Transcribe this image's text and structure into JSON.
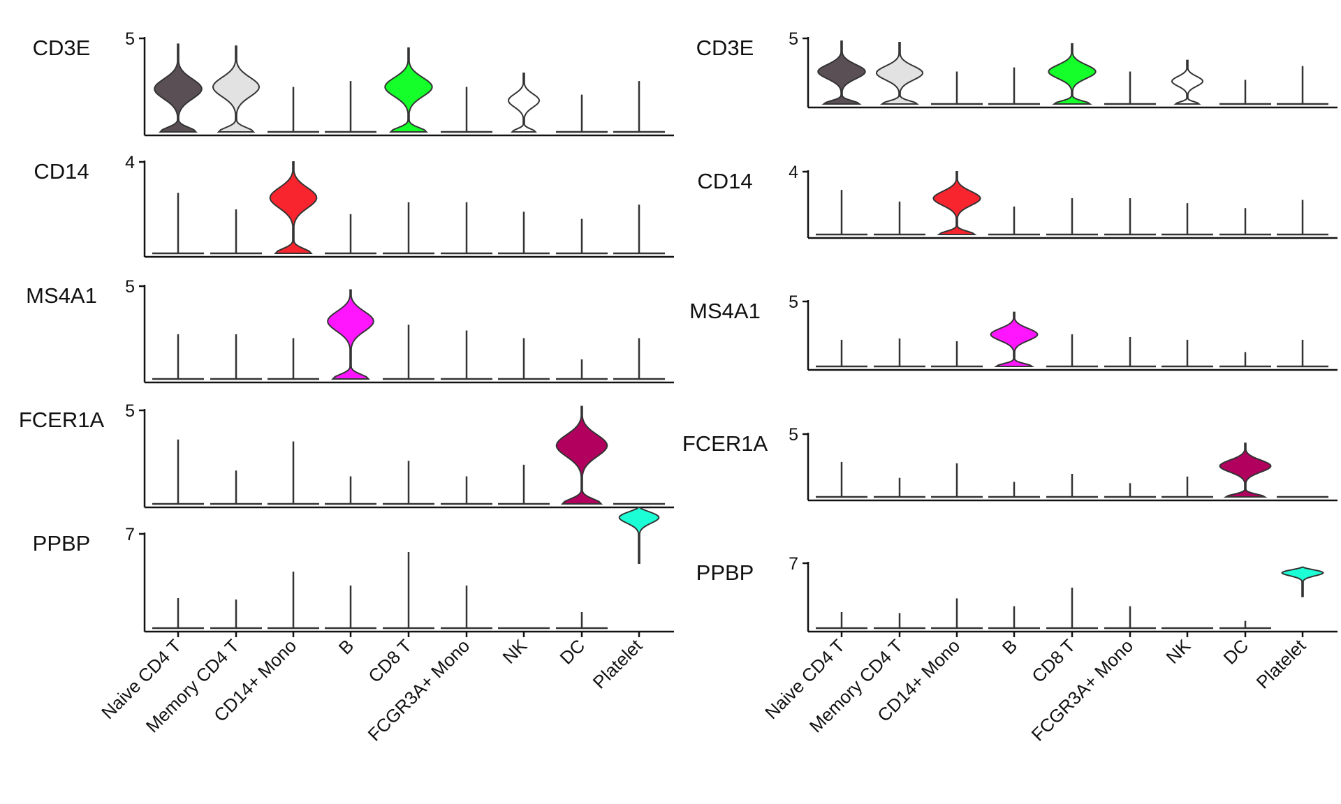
{
  "chart_data": [
    {
      "type": "violin",
      "categories": [
        "Naive CD4 T",
        "Memory CD4 T",
        "CD14+ Mono",
        "B",
        "CD8 T",
        "FCGR3A+ Mono",
        "NK",
        "DC",
        "Platelet"
      ],
      "category_colors": [
        "#5a4f55",
        "#e2e2e2",
        "#f8252f",
        "#ff16ff",
        "#15ff2a",
        "#ffffff",
        "#ffffff",
        "#b1005e",
        "#1cffd6"
      ],
      "panels": [
        {
          "gene": "CD3E",
          "ylim": [
            0,
            5
          ],
          "tick_label": "5",
          "violins": [
            {
              "category": "Naive CD4 T",
              "max": 4.7,
              "peak": 2.4,
              "width": 0.92
            },
            {
              "category": "Memory CD4 T",
              "max": 4.6,
              "peak": 2.5,
              "width": 0.9
            },
            {
              "category": "CD14+ Mono",
              "max": 2.5,
              "peak": null,
              "width": 0
            },
            {
              "category": "B",
              "max": 2.8,
              "peak": null,
              "width": 0
            },
            {
              "category": "CD8 T",
              "max": 4.5,
              "peak": 2.5,
              "width": 0.92
            },
            {
              "category": "FCGR3A+ Mono",
              "max": 2.5,
              "peak": null,
              "width": 0
            },
            {
              "category": "NK",
              "max": 3.2,
              "peak": 1.8,
              "width": 0.6
            },
            {
              "category": "DC",
              "max": 2.1,
              "peak": null,
              "width": 0
            },
            {
              "category": "Platelet",
              "max": 2.8,
              "peak": null,
              "width": 0
            }
          ]
        },
        {
          "gene": "CD14",
          "ylim": [
            0,
            4
          ],
          "tick_label": "4",
          "violins": [
            {
              "category": "Naive CD4 T",
              "max": 2.7,
              "peak": null,
              "width": 0
            },
            {
              "category": "Memory CD4 T",
              "max": 2.0,
              "peak": null,
              "width": 0
            },
            {
              "category": "CD14+ Mono",
              "max": 4.0,
              "peak": 2.5,
              "width": 0.92
            },
            {
              "category": "B",
              "max": 1.8,
              "peak": null,
              "width": 0
            },
            {
              "category": "CD8 T",
              "max": 2.3,
              "peak": null,
              "width": 0
            },
            {
              "category": "FCGR3A+ Mono",
              "max": 2.3,
              "peak": null,
              "width": 0
            },
            {
              "category": "NK",
              "max": 1.9,
              "peak": null,
              "width": 0
            },
            {
              "category": "DC",
              "max": 1.6,
              "peak": null,
              "width": 0
            },
            {
              "category": "Platelet",
              "max": 2.2,
              "peak": null,
              "width": 0
            }
          ]
        },
        {
          "gene": "MS4A1",
          "ylim": [
            0,
            5
          ],
          "tick_label": "5",
          "violins": [
            {
              "category": "Naive CD4 T",
              "max": 2.5,
              "peak": null,
              "width": 0
            },
            {
              "category": "Memory CD4 T",
              "max": 2.5,
              "peak": null,
              "width": 0
            },
            {
              "category": "CD14+ Mono",
              "max": 2.3,
              "peak": null,
              "width": 0
            },
            {
              "category": "B",
              "max": 4.8,
              "peak": 3.2,
              "width": 0.92
            },
            {
              "category": "CD8 T",
              "max": 3.0,
              "peak": null,
              "width": 0
            },
            {
              "category": "FCGR3A+ Mono",
              "max": 2.7,
              "peak": null,
              "width": 0
            },
            {
              "category": "NK",
              "max": 2.3,
              "peak": null,
              "width": 0
            },
            {
              "category": "DC",
              "max": 1.2,
              "peak": null,
              "width": 0
            },
            {
              "category": "Platelet",
              "max": 2.3,
              "peak": null,
              "width": 0
            }
          ]
        },
        {
          "gene": "FCER1A",
          "ylim": [
            0,
            5
          ],
          "tick_label": "5",
          "violins": [
            {
              "category": "Naive CD4 T",
              "max": 3.5,
              "peak": null,
              "width": 0
            },
            {
              "category": "Memory CD4 T",
              "max": 1.9,
              "peak": null,
              "width": 0
            },
            {
              "category": "CD14+ Mono",
              "max": 3.4,
              "peak": null,
              "width": 0
            },
            {
              "category": "B",
              "max": 1.6,
              "peak": null,
              "width": 0
            },
            {
              "category": "CD8 T",
              "max": 2.4,
              "peak": null,
              "width": 0
            },
            {
              "category": "FCGR3A+ Mono",
              "max": 1.6,
              "peak": null,
              "width": 0
            },
            {
              "category": "NK",
              "max": 2.2,
              "peak": null,
              "width": 0
            },
            {
              "category": "DC",
              "max": 5.2,
              "peak": 3.2,
              "width": 1.0
            },
            {
              "category": "Platelet",
              "max": 0,
              "peak": null,
              "width": 0
            }
          ]
        },
        {
          "gene": "PPBP",
          "ylim": [
            0,
            7
          ],
          "tick_label": "7",
          "violins": [
            {
              "category": "Naive CD4 T",
              "max": 2.4,
              "peak": null,
              "width": 0
            },
            {
              "category": "Memory CD4 T",
              "max": 2.3,
              "peak": null,
              "width": 0
            },
            {
              "category": "CD14+ Mono",
              "max": 4.3,
              "peak": null,
              "width": 0
            },
            {
              "category": "B",
              "max": 3.3,
              "peak": null,
              "width": 0
            },
            {
              "category": "CD8 T",
              "max": 5.7,
              "peak": null,
              "width": 0
            },
            {
              "category": "FCGR3A+ Mono",
              "max": 3.3,
              "peak": null,
              "width": 0
            },
            {
              "category": "NK",
              "max": 0,
              "peak": null,
              "width": 0
            },
            {
              "category": "DC",
              "max": 1.4,
              "peak": null,
              "width": 0
            },
            {
              "category": "Platelet",
              "max": 8.9,
              "peak": 8.3,
              "width": 1.0,
              "min": 4.9
            }
          ]
        }
      ]
    },
    {
      "type": "violin",
      "categories": [
        "Naive CD4 T",
        "Memory CD4 T",
        "CD14+ Mono",
        "B",
        "CD8 T",
        "FCGR3A+ Mono",
        "NK",
        "DC",
        "Platelet"
      ],
      "category_colors": [
        "#5a4f55",
        "#e2e2e2",
        "#f8252f",
        "#ff16ff",
        "#15ff2a",
        "#ffffff",
        "#ffffff",
        "#b1005e",
        "#1cffd6"
      ],
      "panels": [
        {
          "gene": "CD3E",
          "ylim": [
            0,
            5
          ],
          "tick_label": "5",
          "violins": [
            {
              "category": "Naive CD4 T",
              "max": 4.8,
              "peak": 2.6,
              "width": 0.92
            },
            {
              "category": "Memory CD4 T",
              "max": 4.7,
              "peak": 2.5,
              "width": 0.9
            },
            {
              "category": "CD14+ Mono",
              "max": 2.6,
              "peak": null,
              "width": 0
            },
            {
              "category": "B",
              "max": 2.9,
              "peak": null,
              "width": 0
            },
            {
              "category": "CD8 T",
              "max": 4.6,
              "peak": 2.6,
              "width": 0.92
            },
            {
              "category": "FCGR3A+ Mono",
              "max": 2.6,
              "peak": null,
              "width": 0
            },
            {
              "category": "NK",
              "max": 3.4,
              "peak": 1.9,
              "width": 0.6
            },
            {
              "category": "DC",
              "max": 2.0,
              "peak": null,
              "width": 0
            },
            {
              "category": "Platelet",
              "max": 3.0,
              "peak": null,
              "width": 0
            }
          ]
        },
        {
          "gene": "CD14",
          "ylim": [
            0,
            4
          ],
          "tick_label": "4",
          "violins": [
            {
              "category": "Naive CD4 T",
              "max": 2.9,
              "peak": null,
              "width": 0
            },
            {
              "category": "Memory CD4 T",
              "max": 2.2,
              "peak": null,
              "width": 0
            },
            {
              "category": "CD14+ Mono",
              "max": 4.0,
              "peak": 2.4,
              "width": 0.92
            },
            {
              "category": "B",
              "max": 1.9,
              "peak": null,
              "width": 0
            },
            {
              "category": "CD8 T",
              "max": 2.4,
              "peak": null,
              "width": 0
            },
            {
              "category": "FCGR3A+ Mono",
              "max": 2.4,
              "peak": null,
              "width": 0
            },
            {
              "category": "NK",
              "max": 2.1,
              "peak": null,
              "width": 0
            },
            {
              "category": "DC",
              "max": 1.8,
              "peak": null,
              "width": 0
            },
            {
              "category": "Platelet",
              "max": 2.3,
              "peak": null,
              "width": 0
            }
          ]
        },
        {
          "gene": "MS4A1",
          "ylim": [
            0,
            5
          ],
          "tick_label": "5",
          "violins": [
            {
              "category": "Naive CD4 T",
              "max": 2.2,
              "peak": null,
              "width": 0
            },
            {
              "category": "Memory CD4 T",
              "max": 2.3,
              "peak": null,
              "width": 0
            },
            {
              "category": "CD14+ Mono",
              "max": 2.1,
              "peak": null,
              "width": 0
            },
            {
              "category": "B",
              "max": 4.2,
              "peak": 2.6,
              "width": 0.92
            },
            {
              "category": "CD8 T",
              "max": 2.6,
              "peak": null,
              "width": 0
            },
            {
              "category": "FCGR3A+ Mono",
              "max": 2.4,
              "peak": null,
              "width": 0
            },
            {
              "category": "NK",
              "max": 2.2,
              "peak": null,
              "width": 0
            },
            {
              "category": "DC",
              "max": 1.3,
              "peak": null,
              "width": 0
            },
            {
              "category": "Platelet",
              "max": 2.2,
              "peak": null,
              "width": 0
            }
          ]
        },
        {
          "gene": "FCER1A",
          "ylim": [
            0,
            5
          ],
          "tick_label": "5",
          "violins": [
            {
              "category": "Naive CD4 T",
              "max": 2.9,
              "peak": null,
              "width": 0
            },
            {
              "category": "Memory CD4 T",
              "max": 1.7,
              "peak": null,
              "width": 0
            },
            {
              "category": "CD14+ Mono",
              "max": 2.8,
              "peak": null,
              "width": 0
            },
            {
              "category": "B",
              "max": 1.4,
              "peak": null,
              "width": 0
            },
            {
              "category": "CD8 T",
              "max": 2.0,
              "peak": null,
              "width": 0
            },
            {
              "category": "FCGR3A+ Mono",
              "max": 1.3,
              "peak": null,
              "width": 0
            },
            {
              "category": "NK",
              "max": 1.8,
              "peak": null,
              "width": 0
            },
            {
              "category": "DC",
              "max": 4.3,
              "peak": 2.6,
              "width": 1.0
            },
            {
              "category": "Platelet",
              "max": 0,
              "peak": null,
              "width": 0
            }
          ]
        },
        {
          "gene": "PPBP",
          "ylim": [
            0,
            7
          ],
          "tick_label": "7",
          "violins": [
            {
              "category": "Naive CD4 T",
              "max": 2.0,
              "peak": null,
              "width": 0
            },
            {
              "category": "Memory CD4 T",
              "max": 1.9,
              "peak": null,
              "width": 0
            },
            {
              "category": "CD14+ Mono",
              "max": 3.4,
              "peak": null,
              "width": 0
            },
            {
              "category": "B",
              "max": 2.6,
              "peak": null,
              "width": 0
            },
            {
              "category": "CD8 T",
              "max": 4.5,
              "peak": null,
              "width": 0
            },
            {
              "category": "FCGR3A+ Mono",
              "max": 2.6,
              "peak": null,
              "width": 0
            },
            {
              "category": "NK",
              "max": 0,
              "peak": null,
              "width": 0
            },
            {
              "category": "DC",
              "max": 1.1,
              "peak": null,
              "width": 0
            },
            {
              "category": "Platelet",
              "max": 6.6,
              "peak": 6.1,
              "width": 1.0,
              "min": 3.6
            }
          ]
        }
      ]
    }
  ]
}
